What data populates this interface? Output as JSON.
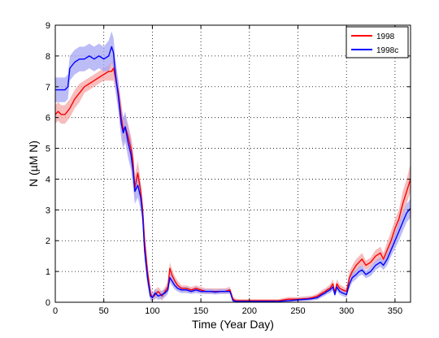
{
  "chart_data": {
    "type": "line",
    "xlabel": "Time (Year Day)",
    "ylabel": "N (µM N)",
    "xlim": [
      0,
      366
    ],
    "ylim": [
      0,
      9
    ],
    "xticks": [
      0,
      50,
      100,
      150,
      200,
      250,
      300,
      350
    ],
    "yticks": [
      0,
      1,
      2,
      3,
      4,
      5,
      6,
      7,
      8,
      9
    ],
    "grid": "dotted",
    "legend_position": "top-right",
    "series": [
      {
        "name": "1998",
        "color": "#ff0000",
        "band_color": "#f4a6a6",
        "x": [
          0,
          3,
          6,
          10,
          15,
          20,
          25,
          30,
          35,
          40,
          45,
          50,
          55,
          58,
          60,
          62,
          65,
          68,
          70,
          72,
          75,
          78,
          80,
          82,
          85,
          88,
          90,
          92,
          95,
          98,
          100,
          103,
          106,
          110,
          113,
          116,
          118,
          120,
          123,
          126,
          130,
          135,
          140,
          145,
          150,
          155,
          160,
          165,
          170,
          175,
          180,
          183,
          186,
          190,
          200,
          210,
          220,
          230,
          240,
          250,
          260,
          265,
          270,
          275,
          278,
          280,
          283,
          286,
          288,
          290,
          293,
          296,
          300,
          303,
          306,
          310,
          313,
          316,
          320,
          325,
          330,
          335,
          338,
          342,
          346,
          350,
          354,
          358,
          362,
          366
        ],
        "y": [
          6.1,
          6.2,
          6.1,
          6.1,
          6.3,
          6.6,
          6.8,
          7.0,
          7.1,
          7.2,
          7.3,
          7.4,
          7.5,
          7.5,
          7.6,
          7.3,
          6.8,
          6.0,
          5.6,
          5.7,
          5.4,
          5.0,
          4.6,
          3.7,
          4.2,
          3.6,
          3.0,
          2.0,
          1.0,
          0.3,
          0.15,
          0.25,
          0.35,
          0.2,
          0.35,
          0.5,
          1.1,
          0.9,
          0.7,
          0.55,
          0.45,
          0.45,
          0.4,
          0.45,
          0.4,
          0.35,
          0.35,
          0.35,
          0.35,
          0.35,
          0.4,
          0.1,
          0.05,
          0.05,
          0.05,
          0.05,
          0.05,
          0.05,
          0.1,
          0.1,
          0.12,
          0.15,
          0.2,
          0.3,
          0.35,
          0.4,
          0.45,
          0.6,
          0.3,
          0.6,
          0.45,
          0.4,
          0.35,
          0.8,
          1.0,
          1.2,
          1.3,
          1.4,
          1.2,
          1.3,
          1.5,
          1.6,
          1.4,
          1.7,
          2.0,
          2.4,
          2.7,
          3.2,
          3.6,
          4.0
        ],
        "lower": [
          5.8,
          5.9,
          5.8,
          5.8,
          6.0,
          6.3,
          6.5,
          6.8,
          6.9,
          7.0,
          7.1,
          7.2,
          7.2,
          7.2,
          7.2,
          6.9,
          6.3,
          5.5,
          5.2,
          5.3,
          5.0,
          4.6,
          4.2,
          3.3,
          3.9,
          3.3,
          2.7,
          1.7,
          0.7,
          0.1,
          0.05,
          0.1,
          0.2,
          0.05,
          0.2,
          0.35,
          0.9,
          0.7,
          0.55,
          0.42,
          0.35,
          0.35,
          0.3,
          0.35,
          0.3,
          0.27,
          0.27,
          0.27,
          0.27,
          0.27,
          0.3,
          0.02,
          0.0,
          0.0,
          0.0,
          0.0,
          0.0,
          0.0,
          0.03,
          0.03,
          0.05,
          0.08,
          0.12,
          0.2,
          0.25,
          0.3,
          0.33,
          0.45,
          0.2,
          0.45,
          0.32,
          0.3,
          0.25,
          0.6,
          0.8,
          1.0,
          1.1,
          1.2,
          1.05,
          1.15,
          1.3,
          1.4,
          1.2,
          1.45,
          1.75,
          2.1,
          2.4,
          2.8,
          3.2,
          3.6
        ],
        "upper": [
          6.4,
          6.5,
          6.4,
          6.4,
          6.6,
          6.9,
          7.1,
          7.2,
          7.3,
          7.4,
          7.5,
          7.6,
          7.7,
          7.8,
          7.9,
          7.7,
          7.2,
          6.5,
          6.0,
          6.1,
          5.8,
          5.4,
          5.0,
          4.1,
          4.6,
          3.9,
          3.3,
          2.3,
          1.3,
          0.5,
          0.3,
          0.4,
          0.5,
          0.35,
          0.5,
          0.65,
          1.3,
          1.1,
          0.85,
          0.7,
          0.55,
          0.55,
          0.5,
          0.55,
          0.5,
          0.45,
          0.45,
          0.45,
          0.45,
          0.45,
          0.5,
          0.18,
          0.12,
          0.1,
          0.1,
          0.1,
          0.1,
          0.1,
          0.17,
          0.17,
          0.2,
          0.22,
          0.28,
          0.4,
          0.45,
          0.5,
          0.57,
          0.75,
          0.4,
          0.75,
          0.58,
          0.52,
          0.45,
          1.0,
          1.2,
          1.4,
          1.5,
          1.6,
          1.35,
          1.45,
          1.7,
          1.8,
          1.6,
          1.95,
          2.3,
          2.7,
          3.0,
          3.6,
          4.0,
          4.5
        ]
      },
      {
        "name": "1998c",
        "color": "#0000ff",
        "band_color": "#a6a6f4",
        "x": [
          0,
          3,
          6,
          10,
          13,
          15,
          20,
          25,
          30,
          35,
          40,
          45,
          50,
          55,
          58,
          60,
          62,
          65,
          68,
          70,
          72,
          75,
          78,
          80,
          82,
          85,
          88,
          90,
          92,
          95,
          98,
          100,
          103,
          106,
          110,
          113,
          116,
          118,
          120,
          123,
          126,
          130,
          135,
          140,
          145,
          150,
          155,
          160,
          165,
          170,
          175,
          180,
          183,
          186,
          190,
          200,
          210,
          220,
          230,
          240,
          250,
          260,
          265,
          270,
          275,
          278,
          280,
          283,
          286,
          288,
          290,
          293,
          296,
          300,
          303,
          306,
          310,
          313,
          316,
          320,
          325,
          330,
          335,
          338,
          342,
          346,
          350,
          354,
          358,
          362,
          366
        ],
        "y": [
          6.9,
          6.9,
          6.9,
          6.9,
          7.0,
          7.6,
          7.8,
          7.9,
          7.9,
          8.0,
          7.9,
          8.0,
          7.9,
          8.0,
          8.3,
          8.1,
          7.4,
          6.7,
          5.8,
          5.5,
          5.7,
          5.2,
          4.8,
          4.3,
          3.6,
          3.8,
          3.4,
          2.8,
          1.7,
          0.8,
          0.2,
          0.15,
          0.3,
          0.2,
          0.25,
          0.3,
          0.4,
          0.8,
          0.7,
          0.55,
          0.45,
          0.4,
          0.4,
          0.35,
          0.4,
          0.35,
          0.35,
          0.35,
          0.33,
          0.35,
          0.35,
          0.35,
          0.05,
          0.03,
          0.03,
          0.03,
          0.03,
          0.03,
          0.03,
          0.05,
          0.08,
          0.1,
          0.12,
          0.15,
          0.25,
          0.3,
          0.35,
          0.4,
          0.5,
          0.25,
          0.5,
          0.35,
          0.3,
          0.25,
          0.6,
          0.8,
          0.9,
          1.0,
          1.05,
          0.9,
          1.0,
          1.2,
          1.3,
          1.2,
          1.4,
          1.7,
          2.0,
          2.3,
          2.6,
          2.9,
          3.05
        ],
        "lower": [
          6.5,
          6.5,
          6.5,
          6.5,
          6.6,
          7.2,
          7.4,
          7.5,
          7.5,
          7.6,
          7.5,
          7.6,
          7.5,
          7.5,
          7.8,
          7.6,
          6.9,
          6.2,
          5.3,
          5.0,
          5.2,
          4.7,
          4.3,
          3.8,
          3.2,
          3.4,
          3.0,
          2.5,
          1.4,
          0.55,
          0.05,
          0.05,
          0.15,
          0.08,
          0.12,
          0.17,
          0.27,
          0.65,
          0.55,
          0.42,
          0.35,
          0.3,
          0.3,
          0.27,
          0.3,
          0.27,
          0.27,
          0.27,
          0.25,
          0.27,
          0.27,
          0.27,
          0.0,
          0.0,
          0.0,
          0.0,
          0.0,
          0.0,
          0.0,
          0.01,
          0.03,
          0.04,
          0.06,
          0.08,
          0.17,
          0.22,
          0.26,
          0.3,
          0.38,
          0.17,
          0.38,
          0.25,
          0.2,
          0.15,
          0.45,
          0.65,
          0.75,
          0.85,
          0.9,
          0.78,
          0.85,
          1.05,
          1.15,
          1.05,
          1.2,
          1.5,
          1.75,
          2.0,
          2.3,
          2.6,
          2.75
        ],
        "upper": [
          7.3,
          7.3,
          7.3,
          7.3,
          7.4,
          8.0,
          8.2,
          8.3,
          8.3,
          8.4,
          8.3,
          8.4,
          8.3,
          8.5,
          8.8,
          8.6,
          7.9,
          7.2,
          6.3,
          6.0,
          6.2,
          5.7,
          5.3,
          4.8,
          4.0,
          4.2,
          3.8,
          3.1,
          2.0,
          1.05,
          0.35,
          0.25,
          0.45,
          0.32,
          0.38,
          0.43,
          0.53,
          0.95,
          0.85,
          0.68,
          0.55,
          0.5,
          0.5,
          0.43,
          0.5,
          0.43,
          0.43,
          0.43,
          0.41,
          0.43,
          0.43,
          0.43,
          0.1,
          0.06,
          0.06,
          0.06,
          0.06,
          0.06,
          0.06,
          0.09,
          0.13,
          0.16,
          0.18,
          0.22,
          0.33,
          0.38,
          0.44,
          0.5,
          0.62,
          0.33,
          0.62,
          0.45,
          0.4,
          0.35,
          0.75,
          0.95,
          1.05,
          1.15,
          1.2,
          1.02,
          1.15,
          1.35,
          1.45,
          1.35,
          1.6,
          1.9,
          2.25,
          2.6,
          2.9,
          3.2,
          3.35
        ]
      }
    ]
  }
}
